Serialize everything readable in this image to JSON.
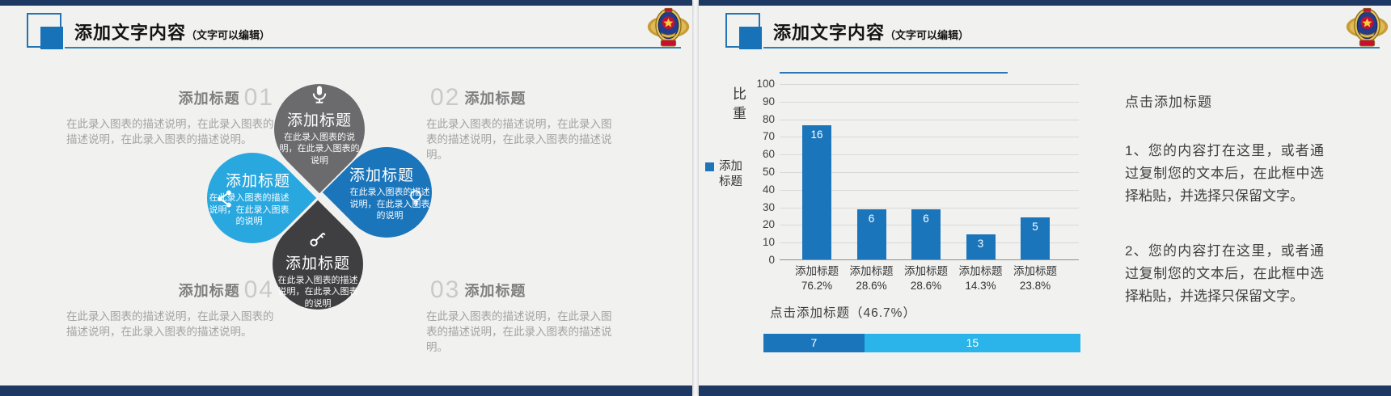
{
  "colors": {
    "navy_strip": "#1e3864",
    "accent_blue": "#1b75bb",
    "light_blue_petal": "#29a8e0",
    "mid_gray_petal": "#6b6b6e",
    "dark_gray_petal": "#3f3f41",
    "header_underline": "#2b85b5",
    "stacked_dark": "#1b75bb",
    "stacked_light": "#2ab4ea"
  },
  "slide1": {
    "header": {
      "title": "添加文字内容",
      "subtitle": "（文字可以编辑）",
      "emblem_icon": "police-badge-emblem"
    },
    "sections": [
      {
        "number": "01",
        "title": "添加标题",
        "desc": "在此录入图表的描述说明，在此录入图表的描述说明，在此录入图表的描述说明。"
      },
      {
        "number": "02",
        "title": "添加标题",
        "desc": "在此录入图表的描述说明，在此录入图表的描述说明，在此录入图表的描述说明。"
      },
      {
        "number": "03",
        "title": "添加标题",
        "desc": "在此录入图表的描述说明，在此录入图表的描述说明，在此录入图表的描述说明。"
      },
      {
        "number": "04",
        "title": "添加标题",
        "desc": "在此录入图表的描述说明，在此录入图表的描述说明，在此录入图表的描述说明。"
      }
    ],
    "petals": [
      {
        "position": "top",
        "icon": "microphone-icon",
        "color": "#6b6b6e",
        "title": "添加标题",
        "desc": "在此录入图表的说明，在此录入图表的说明"
      },
      {
        "position": "left",
        "icon": "share-icon",
        "color": "#29a8e0",
        "title": "添加标题",
        "desc": "在此录入图表的描述说明，在此录入图表的说明"
      },
      {
        "position": "right",
        "icon": "lightbulb-icon",
        "color": "#1b75bb",
        "title": "添加标题",
        "desc": "在此录入图表的描述说明，在此录入图表的说明"
      },
      {
        "position": "bottom",
        "icon": "key-icon",
        "color": "#3f3f41",
        "title": "添加标题",
        "desc": "在此录入图表的描述说明，在此录入图表的说明"
      }
    ]
  },
  "slide2": {
    "header": {
      "title": "添加文字内容",
      "subtitle": "（文字可以编辑）",
      "emblem_icon": "police-badge-emblem"
    },
    "text_panel": {
      "heading": "点击添加标题",
      "paragraphs": [
        "1、您的内容打在这里，或者通过复制您的文本后，在此框中选择粘贴，并选择只保留文字。",
        "2、您的内容打在这里，或者通过复制您的文本后，在此框中选择粘贴，并选择只保留文字。"
      ]
    }
  },
  "chart_data": [
    {
      "type": "bar",
      "ylabel": "比重",
      "legend": [
        {
          "label": "添加标题",
          "color": "#1b75bb"
        }
      ],
      "legend_position": "left",
      "categories": [
        "添加标题",
        "添加标题",
        "添加标题",
        "添加标题",
        "添加标题"
      ],
      "category_percent_labels": [
        "76.2%",
        "28.6%",
        "28.6%",
        "14.3%",
        "23.8%"
      ],
      "values": [
        76.2,
        28.6,
        28.6,
        14.3,
        23.8
      ],
      "bar_value_labels": [
        "16",
        "6",
        "6",
        "3",
        "5"
      ],
      "ylim": [
        0,
        100
      ],
      "ytick_step": 10,
      "grid": true,
      "bar_color": "#1b75bb"
    },
    {
      "type": "bar",
      "orientation": "horizontal-stacked",
      "title": "点击添加标题（46.7%）",
      "segments": [
        {
          "label": "7",
          "value": 7,
          "color": "#1b75bb"
        },
        {
          "label": "15",
          "value": 15,
          "color": "#2ab4ea"
        }
      ]
    }
  ]
}
